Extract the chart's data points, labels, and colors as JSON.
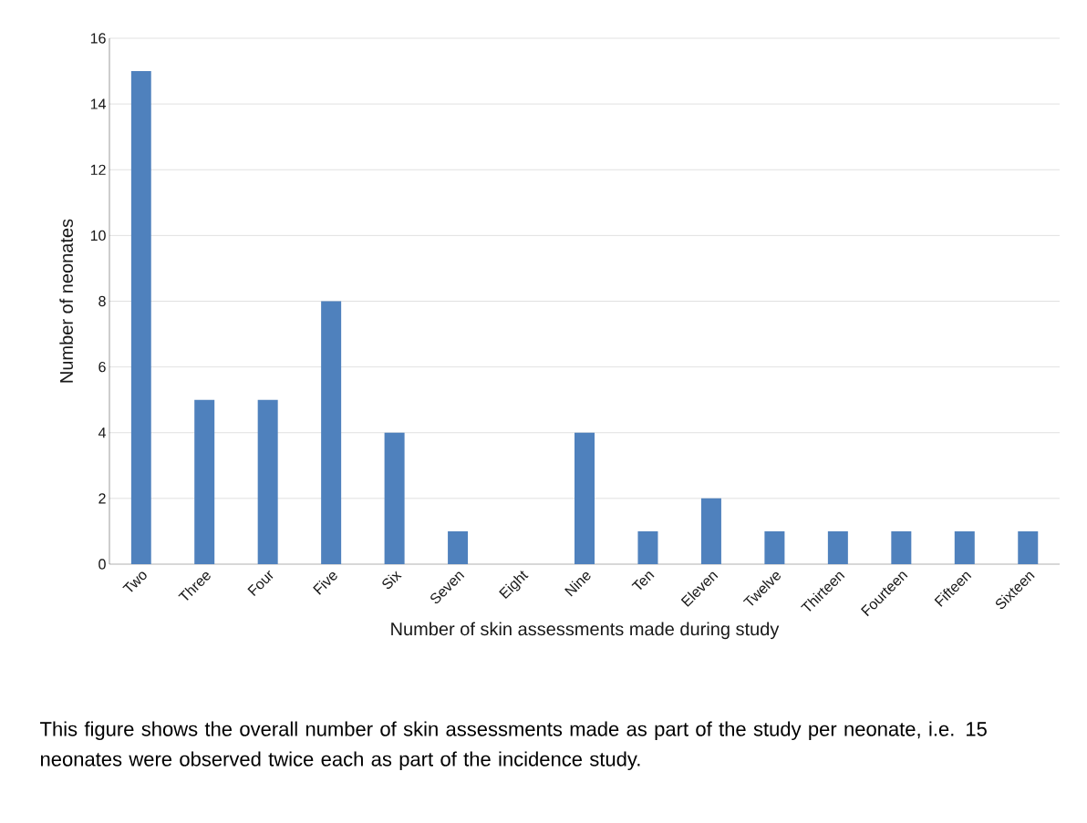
{
  "chart_data": {
    "type": "bar",
    "categories": [
      "Two",
      "Three",
      "Four",
      "Five",
      "Six",
      "Seven",
      "Eight",
      "Nine",
      "Ten",
      "Eleven",
      "Twelve",
      "Thirteen",
      "Fourteen",
      "Fifteen",
      "Sixteen"
    ],
    "values": [
      15,
      5,
      5,
      8,
      4,
      1,
      0,
      4,
      1,
      2,
      1,
      1,
      1,
      1,
      1
    ],
    "color": "#4f81bd",
    "xlabel": "Number of skin assessments made during study",
    "ylabel": "Number of neonates",
    "ylim": [
      0,
      16
    ],
    "yticks": [
      0,
      2,
      4,
      6,
      8,
      10,
      12,
      14,
      16
    ],
    "grid": "y",
    "annotations": [
      "This figure shows the overall number of skin assessments made as part of the study per neonate, i.e. 15 neonates were observed twice each as part of the incidence study."
    ]
  }
}
